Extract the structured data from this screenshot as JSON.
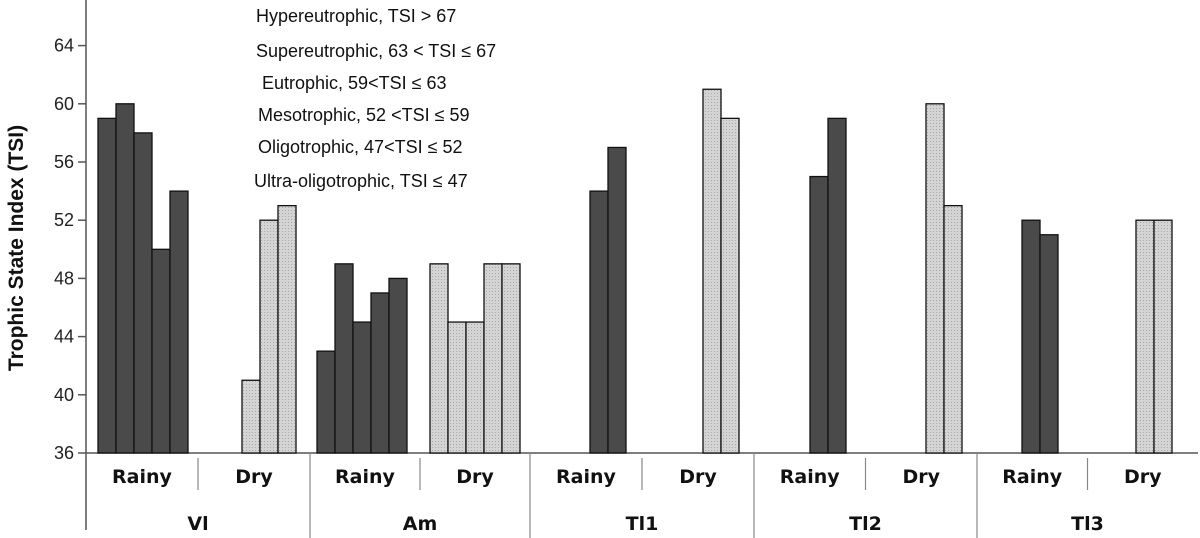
{
  "chart_data": {
    "type": "bar",
    "ylabel": "Trophic State Index (TSI)",
    "ylim": [
      36,
      66
    ],
    "yticks": [
      36,
      40,
      44,
      48,
      52,
      56,
      60,
      64
    ],
    "colors": {
      "rainy": "#4a4a4a",
      "dry": "#cfcfcf",
      "axis": "#555555"
    },
    "annotations": [
      "Hypereutrophic, TSI > 67",
      "Supereutrophic, 63 < TSI ≤ 67",
      "Eutrophic, 59<TSI ≤ 63",
      "Mesotrophic, 52 <TSI ≤ 59",
      "Oligotrophic, 47<TSI ≤ 52",
      "Ultra-oligotrophic, TSI ≤ 47"
    ],
    "groups": [
      {
        "site": "Vl",
        "seasons": [
          {
            "label": "Rainy",
            "kind": "rainy",
            "values": [
              59,
              60,
              58,
              50,
              54
            ]
          },
          {
            "label": "Dry",
            "kind": "dry",
            "values": [
              41,
              52,
              53
            ]
          }
        ]
      },
      {
        "site": "Am",
        "seasons": [
          {
            "label": "Rainy",
            "kind": "rainy",
            "values": [
              43,
              49,
              45,
              47,
              48
            ]
          },
          {
            "label": "Dry",
            "kind": "dry",
            "values": [
              49,
              45,
              45,
              49,
              49
            ]
          }
        ]
      },
      {
        "site": "Tl1",
        "seasons": [
          {
            "label": "Rainy",
            "kind": "rainy",
            "values": [
              54,
              57
            ]
          },
          {
            "label": "Dry",
            "kind": "dry",
            "values": [
              61,
              59
            ]
          }
        ]
      },
      {
        "site": "Tl2",
        "seasons": [
          {
            "label": "Rainy",
            "kind": "rainy",
            "values": [
              55,
              59
            ]
          },
          {
            "label": "Dry",
            "kind": "dry",
            "values": [
              60,
              53
            ]
          }
        ]
      },
      {
        "site": "Tl3",
        "seasons": [
          {
            "label": "Rainy",
            "kind": "rainy",
            "values": [
              52,
              51
            ]
          },
          {
            "label": "Dry",
            "kind": "dry",
            "values": [
              52,
              52
            ]
          }
        ]
      }
    ]
  }
}
